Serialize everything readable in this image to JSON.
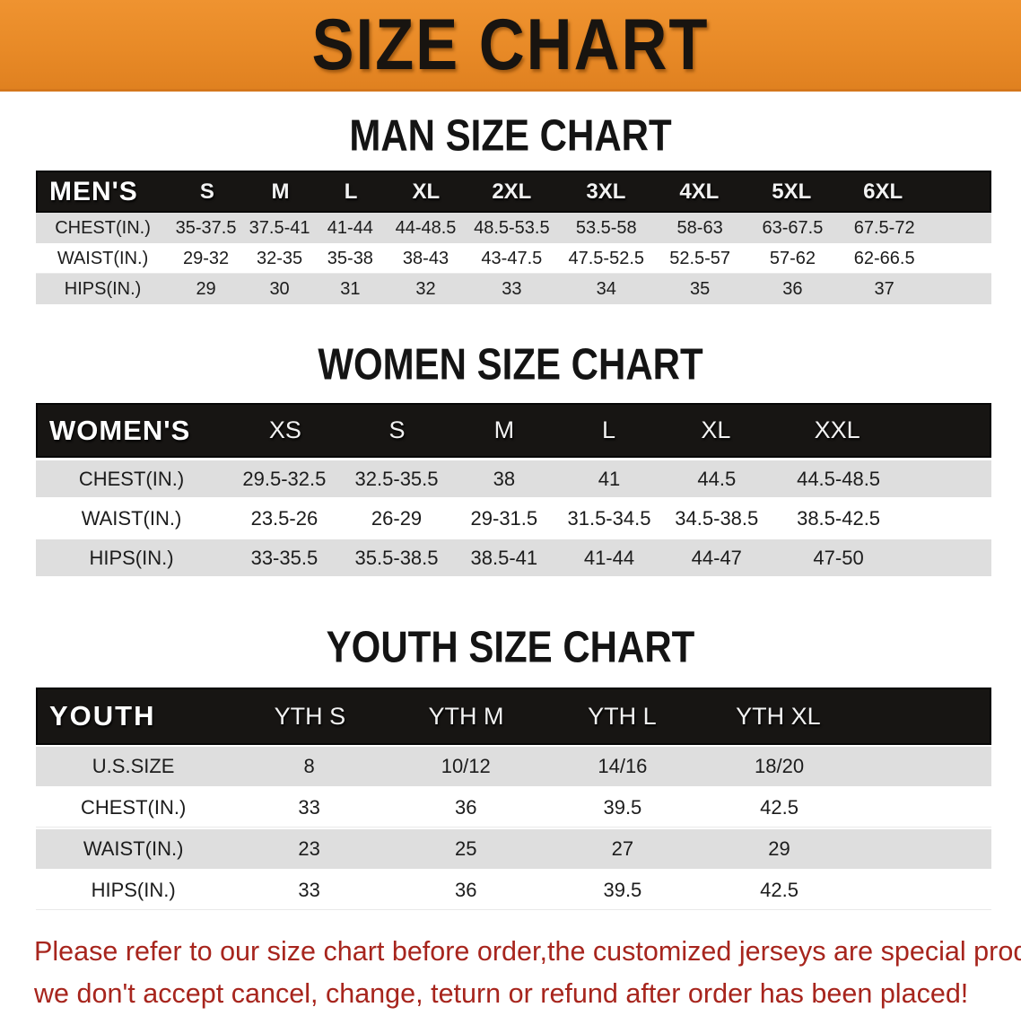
{
  "banner": {
    "title": "SIZE CHART",
    "bg_color": "#E88A27",
    "text_color": "#181410"
  },
  "colors": {
    "header_band": "#171513",
    "row_stripe": "#DEDEDE",
    "disclaimer_red": "#A7251D"
  },
  "sections": [
    {
      "heading": "MAN SIZE CHART",
      "header_label": "MEN'S",
      "columns": [
        "S",
        "M",
        "L",
        "XL",
        "2XL",
        "3XL",
        "4XL",
        "5XL",
        "6XL"
      ],
      "rows": [
        {
          "label": "CHEST(IN.)",
          "values": [
            "35-37.5",
            "37.5-41",
            "41-44",
            "44-48.5",
            "48.5-53.5",
            "53.5-58",
            "58-63",
            "63-67.5",
            "67.5-72"
          ]
        },
        {
          "label": "WAIST(IN.)",
          "values": [
            "29-32",
            "32-35",
            "35-38",
            "38-43",
            "43-47.5",
            "47.5-52.5",
            "52.5-57",
            "57-62",
            "62-66.5"
          ]
        },
        {
          "label": "HIPS(IN.)",
          "values": [
            "29",
            "30",
            "31",
            "32",
            "33",
            "34",
            "35",
            "36",
            "37"
          ]
        }
      ]
    },
    {
      "heading": "WOMEN SIZE CHART",
      "header_label": "WOMEN'S",
      "columns": [
        "XS",
        "S",
        "M",
        "L",
        "XL",
        "XXL"
      ],
      "rows": [
        {
          "label": "CHEST(IN.)",
          "values": [
            "29.5-32.5",
            "32.5-35.5",
            "38",
            "41",
            "44.5",
            "44.5-48.5"
          ]
        },
        {
          "label": "WAIST(IN.)",
          "values": [
            "23.5-26",
            "26-29",
            "29-31.5",
            "31.5-34.5",
            "34.5-38.5",
            "38.5-42.5"
          ]
        },
        {
          "label": "HIPS(IN.)",
          "values": [
            "33-35.5",
            "35.5-38.5",
            "38.5-41",
            "41-44",
            "44-47",
            "47-50"
          ]
        }
      ]
    },
    {
      "heading": "YOUTH SIZE CHART",
      "header_label": "YOUTH",
      "columns": [
        "YTH S",
        "YTH M",
        "YTH L",
        "YTH XL"
      ],
      "rows": [
        {
          "label": "U.S.SIZE",
          "values": [
            "8",
            "10/12",
            "14/16",
            "18/20"
          ]
        },
        {
          "label": "CHEST(IN.)",
          "values": [
            "33",
            "36",
            "39.5",
            "42.5"
          ]
        },
        {
          "label": "WAIST(IN.)",
          "values": [
            "23",
            "25",
            "27",
            "29"
          ]
        },
        {
          "label": "HIPS(IN.)",
          "values": [
            "33",
            "36",
            "39.5",
            "42.5"
          ]
        }
      ]
    }
  ],
  "disclaimer": {
    "line1": "Please refer to our size chart before order,the customized jerseys are special products,",
    "line2": "we don't accept cancel, change, teturn or refund after order has been placed!"
  }
}
